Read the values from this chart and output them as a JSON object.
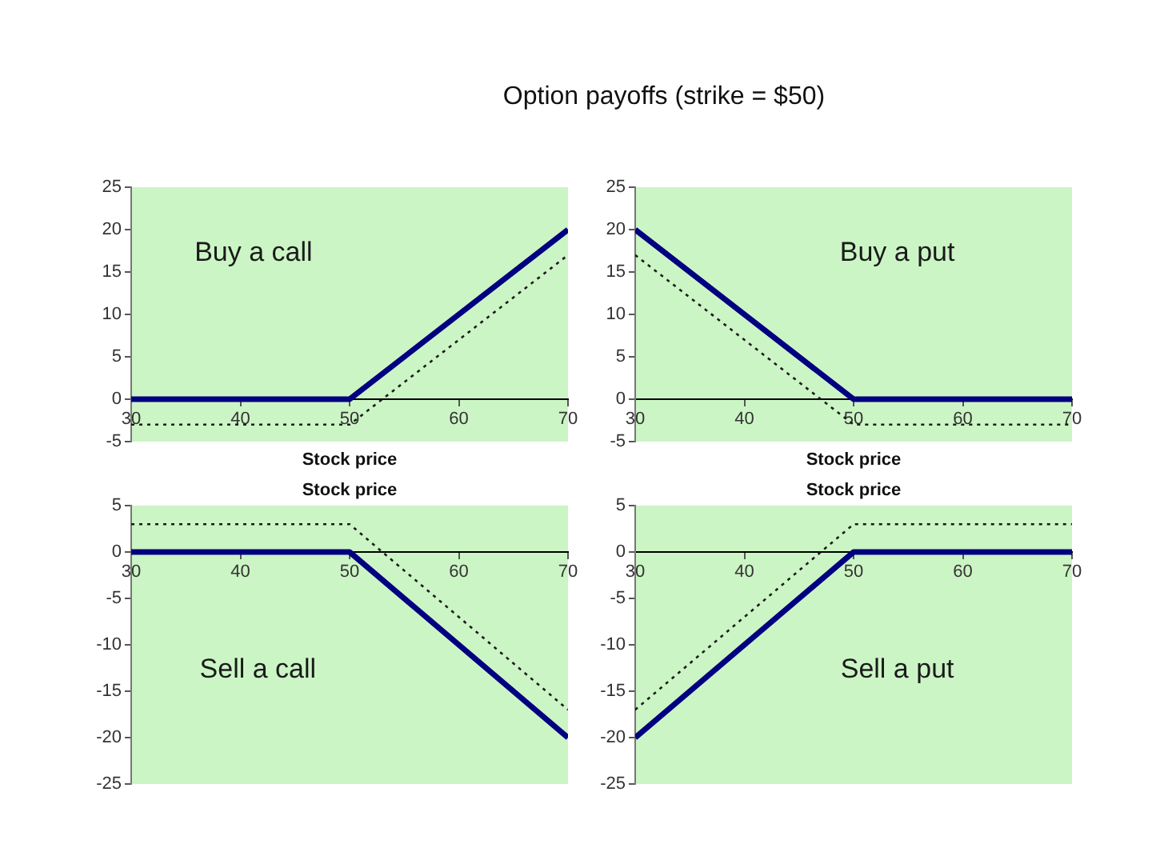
{
  "chart_data": [
    {
      "type": "line",
      "title": "Option payoffs (strike = $50)",
      "xlabel": "Stock price",
      "x": [
        30,
        50,
        70
      ],
      "series": [
        {
          "color": "#000080",
          "values": [
            0,
            0,
            20
          ],
          "line_style": "solid"
        },
        {
          "color": "#1a1a1a",
          "values": [
            -3,
            -3,
            17
          ],
          "line_style": "dotted"
        }
      ],
      "xlim": [
        30,
        70
      ],
      "xticks": [
        30,
        40,
        50,
        60,
        70
      ],
      "ylim": [
        -5,
        25
      ],
      "yticks": [
        -5,
        0,
        5,
        10,
        15,
        20,
        25
      ],
      "grid": false,
      "legend": false,
      "marker": "none",
      "annotations": [
        "Buy a call"
      ]
    },
    {
      "type": "line",
      "xlabel": "Stock price",
      "x": [
        30,
        50,
        70
      ],
      "series": [
        {
          "color": "#000080",
          "values": [
            20,
            0,
            0
          ],
          "line_style": "solid"
        },
        {
          "color": "#1a1a1a",
          "values": [
            17,
            -3,
            -3
          ],
          "line_style": "dotted"
        }
      ],
      "xlim": [
        30,
        70
      ],
      "xticks": [
        30,
        40,
        50,
        60,
        70
      ],
      "ylim": [
        -5,
        25
      ],
      "yticks": [
        -5,
        0,
        5,
        10,
        15,
        20,
        25
      ],
      "grid": false,
      "legend": false,
      "marker": "none",
      "annotations": [
        "Buy a put"
      ]
    },
    {
      "type": "line",
      "xlabel": "Stock price",
      "x": [
        30,
        50,
        70
      ],
      "series": [
        {
          "color": "#000080",
          "values": [
            0,
            0,
            -20
          ],
          "line_style": "solid"
        },
        {
          "color": "#1a1a1a",
          "values": [
            3,
            3,
            -17
          ],
          "line_style": "dotted"
        }
      ],
      "xlim": [
        30,
        70
      ],
      "xticks": [
        30,
        40,
        50,
        60,
        70
      ],
      "ylim": [
        -25,
        5
      ],
      "yticks": [
        -25,
        -20,
        -15,
        -10,
        -5,
        0,
        5
      ],
      "grid": false,
      "legend": false,
      "marker": "none",
      "annotations": [
        "Sell a call"
      ]
    },
    {
      "type": "line",
      "xlabel": "Stock price",
      "x": [
        30,
        50,
        70
      ],
      "series": [
        {
          "color": "#000080",
          "values": [
            -20,
            0,
            0
          ],
          "line_style": "solid"
        },
        {
          "color": "#1a1a1a",
          "values": [
            -17,
            3,
            3
          ],
          "line_style": "dotted"
        }
      ],
      "xlim": [
        30,
        70
      ],
      "xticks": [
        30,
        40,
        50,
        60,
        70
      ],
      "ylim": [
        -25,
        5
      ],
      "yticks": [
        -25,
        -20,
        -15,
        -10,
        -5,
        0,
        5
      ],
      "grid": false,
      "legend": false,
      "marker": "none",
      "annotations": [
        "Sell a put"
      ]
    }
  ]
}
